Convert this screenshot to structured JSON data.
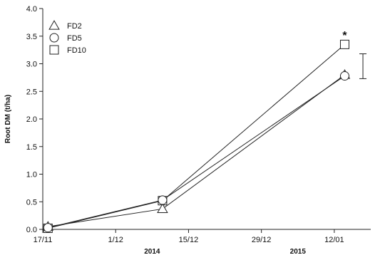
{
  "chart_data": {
    "type": "line",
    "ylabel": "Root DM (t/ha)",
    "xlabel": "",
    "ylim": [
      0,
      4.0
    ],
    "yticks": [
      "0.0",
      "0.5",
      "1.0",
      "1.5",
      "2.0",
      "2.5",
      "3.0",
      "3.5",
      "4.0"
    ],
    "xticks": [
      {
        "label": "17/11",
        "day": 0
      },
      {
        "label": "1/12",
        "day": 14
      },
      {
        "label": "15/12",
        "day": 28
      },
      {
        "label": "29/12",
        "day": 42
      },
      {
        "label": "12/01",
        "day": 56
      }
    ],
    "x_range_days": [
      0,
      63
    ],
    "year_labels": [
      {
        "label": "2014",
        "day": 21
      },
      {
        "label": "2015",
        "day": 49
      }
    ],
    "x": [
      "18/11/2014",
      "10/12/2014",
      "14/01/2015"
    ],
    "x_days": [
      1,
      23,
      58
    ],
    "series": [
      {
        "name": "FD2",
        "marker": "triangle",
        "values": [
          0.05,
          0.37,
          2.8
        ]
      },
      {
        "name": "FD5",
        "marker": "circle",
        "values": [
          0.03,
          0.53,
          2.78
        ]
      },
      {
        "name": "FD10",
        "marker": "square",
        "values": [
          0.02,
          0.52,
          3.35
        ]
      }
    ],
    "error_bar": {
      "day": 61.5,
      "low": 2.73,
      "high": 3.18
    },
    "annotation": {
      "text": "*",
      "day": 58,
      "value": 3.55
    },
    "legend_position": "top-left",
    "grid": false
  }
}
